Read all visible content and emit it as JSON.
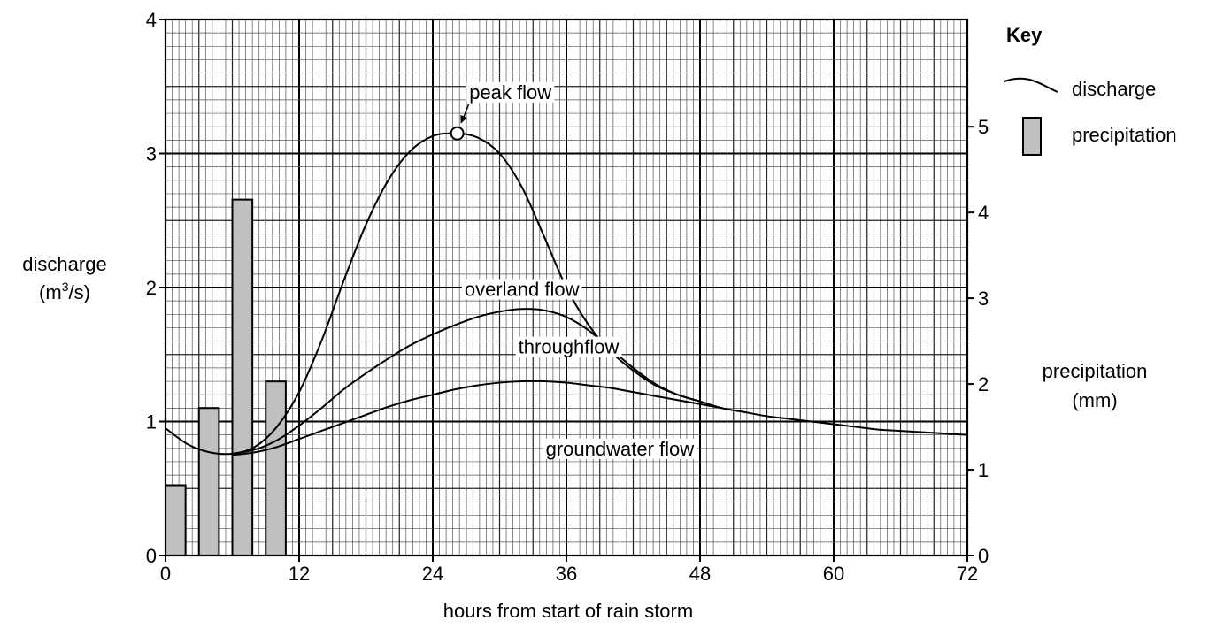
{
  "chart_data": {
    "type": "line",
    "xlabel": "hours from start of rain storm",
    "ylabel_left": "discharge",
    "ylabel_left_unit_base": "(m",
    "ylabel_left_unit_sup": "3",
    "ylabel_left_unit_tail": "/s)",
    "ylabel_right_line1": "precipitation",
    "ylabel_right_line2": "(mm)",
    "xlim": [
      0,
      72
    ],
    "ylim_left": [
      0,
      4
    ],
    "ylim_right": [
      0,
      6.25
    ],
    "x_ticks": [
      "0",
      "12",
      "24",
      "36",
      "48",
      "60",
      "72"
    ],
    "y_left_ticks": [
      "0",
      "1",
      "2",
      "3",
      "4"
    ],
    "y_right_ticks": [
      "0",
      "1",
      "2",
      "3",
      "4",
      "5"
    ],
    "grid": true,
    "key": {
      "title": "Key",
      "discharge_label": "discharge",
      "precipitation_label": "precipitation",
      "bar_color": "#c0c0c0"
    },
    "annotations": {
      "peak": {
        "label": "peak flow",
        "x": 26.2,
        "y": 3.15
      },
      "overland": {
        "label": "overland flow",
        "x": 32,
        "y": 1.99
      },
      "throughflow": {
        "label": "throughflow",
        "x": 36.2,
        "y": 1.56
      },
      "groundwater": {
        "label": "groundwater flow",
        "x": 40.8,
        "y": 0.8
      }
    },
    "precipitation": {
      "name": "precipitation",
      "bars": [
        {
          "x_start": 0,
          "x_end": 1.8,
          "mm": 0.82
        },
        {
          "x_start": 3,
          "x_end": 4.8,
          "mm": 1.72
        },
        {
          "x_start": 6,
          "x_end": 7.8,
          "mm": 4.15
        },
        {
          "x_start": 9,
          "x_end": 10.8,
          "mm": 2.03
        }
      ]
    },
    "series": [
      {
        "name": "discharge",
        "x": [
          0,
          2,
          4,
          6,
          8,
          10,
          12,
          14,
          16,
          18,
          20,
          22,
          24,
          26,
          28,
          30,
          32,
          34,
          36,
          38,
          40,
          42,
          44,
          46,
          48,
          50,
          52,
          54,
          56,
          58,
          60,
          62,
          64,
          66,
          68,
          70,
          72
        ],
        "y": [
          0.95,
          0.83,
          0.77,
          0.76,
          0.81,
          0.96,
          1.22,
          1.6,
          2.05,
          2.47,
          2.8,
          3.02,
          3.13,
          3.15,
          3.12,
          3.0,
          2.75,
          2.38,
          2.0,
          1.72,
          1.52,
          1.38,
          1.27,
          1.2,
          1.15,
          1.1,
          1.07,
          1.04,
          1.02,
          1.0,
          0.98,
          0.96,
          0.94,
          0.93,
          0.92,
          0.91,
          0.9
        ]
      },
      {
        "name": "overland flow boundary",
        "x": [
          6,
          8,
          10,
          12,
          14,
          16,
          18,
          20,
          22,
          24,
          26,
          28,
          30,
          32,
          34,
          36,
          38,
          40,
          42,
          44,
          46,
          48
        ],
        "y": [
          0.76,
          0.79,
          0.86,
          0.97,
          1.1,
          1.24,
          1.36,
          1.47,
          1.57,
          1.65,
          1.72,
          1.78,
          1.82,
          1.84,
          1.83,
          1.78,
          1.68,
          1.54,
          1.4,
          1.28,
          1.2,
          1.15
        ]
      },
      {
        "name": "throughflow boundary",
        "x": [
          6,
          8,
          10,
          12,
          14,
          16,
          18,
          20,
          22,
          24,
          26,
          28,
          30,
          32,
          34,
          36,
          38,
          40,
          42,
          44,
          46,
          48,
          50
        ],
        "y": [
          0.75,
          0.77,
          0.81,
          0.87,
          0.93,
          0.99,
          1.05,
          1.11,
          1.16,
          1.2,
          1.24,
          1.27,
          1.29,
          1.3,
          1.3,
          1.29,
          1.27,
          1.25,
          1.22,
          1.19,
          1.16,
          1.13,
          1.1
        ]
      }
    ]
  }
}
